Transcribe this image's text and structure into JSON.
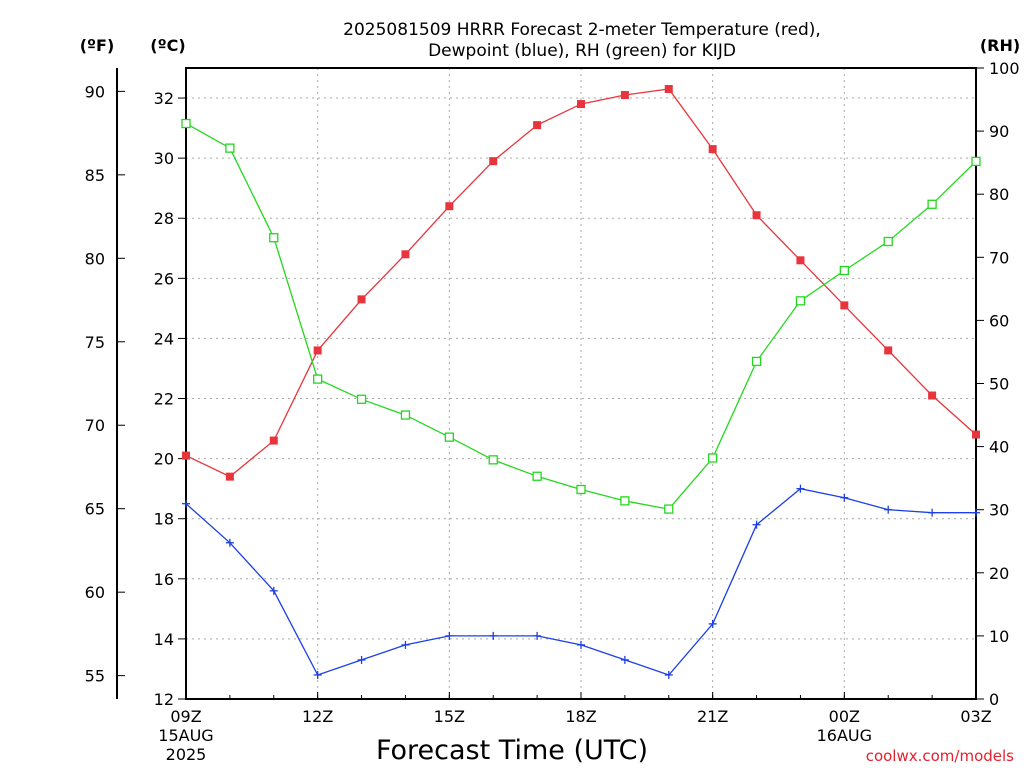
{
  "chart_data": {
    "type": "line",
    "title_line1": "2025081509 HRRR Forecast 2-meter Temperature (red),",
    "title_line2": "Dewpoint (blue), RH (green) for KIJD",
    "units": {
      "fahrenheit": "(ºF)",
      "celsius": "(ºC)",
      "rh": "(RH)"
    },
    "xlabel": "Forecast Time (UTC)",
    "watermark": "coolwx.com/models",
    "x_hours": [
      0,
      1,
      2,
      3,
      4,
      5,
      6,
      7,
      8,
      9,
      10,
      11,
      12,
      13,
      14,
      15,
      16,
      17,
      18
    ],
    "x_ticks": [
      {
        "hour": 0,
        "label": "09Z",
        "sub1": "15AUG",
        "sub2": "2025"
      },
      {
        "hour": 3,
        "label": "12Z",
        "sub1": "",
        "sub2": ""
      },
      {
        "hour": 6,
        "label": "15Z",
        "sub1": "",
        "sub2": ""
      },
      {
        "hour": 9,
        "label": "18Z",
        "sub1": "",
        "sub2": ""
      },
      {
        "hour": 12,
        "label": "21Z",
        "sub1": "",
        "sub2": ""
      },
      {
        "hour": 15,
        "label": "00Z",
        "sub1": "16AUG",
        "sub2": ""
      },
      {
        "hour": 18,
        "label": "03Z",
        "sub1": "",
        "sub2": ""
      }
    ],
    "celsius_axis": {
      "range": [
        12,
        33
      ],
      "ticks": [
        "12",
        "14",
        "16",
        "18",
        "20",
        "22",
        "24",
        "26",
        "28",
        "30",
        "32"
      ]
    },
    "fahrenheit_axis": {
      "ticks": [
        "55",
        "60",
        "65",
        "70",
        "75",
        "80",
        "85",
        "90"
      ]
    },
    "rh_axis": {
      "range": [
        0,
        100
      ],
      "ticks": [
        "0",
        "10",
        "20",
        "30",
        "40",
        "50",
        "60",
        "70",
        "80",
        "90",
        "100"
      ]
    },
    "series": [
      {
        "name": "Temperature",
        "axis": "celsius",
        "color": "#e8343c",
        "marker": "filled-square",
        "values": [
          20.1,
          19.4,
          20.6,
          23.6,
          25.3,
          26.8,
          28.4,
          29.9,
          31.1,
          31.8,
          32.1,
          32.3,
          30.3,
          28.1,
          26.6,
          25.1,
          23.6,
          22.1,
          20.8
        ]
      },
      {
        "name": "Dewpoint",
        "axis": "celsius",
        "color": "#1c3fe6",
        "marker": "plus",
        "values": [
          18.5,
          17.2,
          15.6,
          12.8,
          13.3,
          13.8,
          14.1,
          14.1,
          14.1,
          13.8,
          13.3,
          12.8,
          14.5,
          17.8,
          19.0,
          18.7,
          18.3,
          18.2,
          18.2
        ]
      },
      {
        "name": "RH",
        "axis": "rh",
        "color": "#22d81e",
        "marker": "open-square",
        "values": [
          91.2,
          87.3,
          73.1,
          50.7,
          47.5,
          45.0,
          41.5,
          37.9,
          35.3,
          33.2,
          31.4,
          30.1,
          38.2,
          53.5,
          63.1,
          67.9,
          72.5,
          78.4,
          85.2
        ]
      }
    ]
  }
}
